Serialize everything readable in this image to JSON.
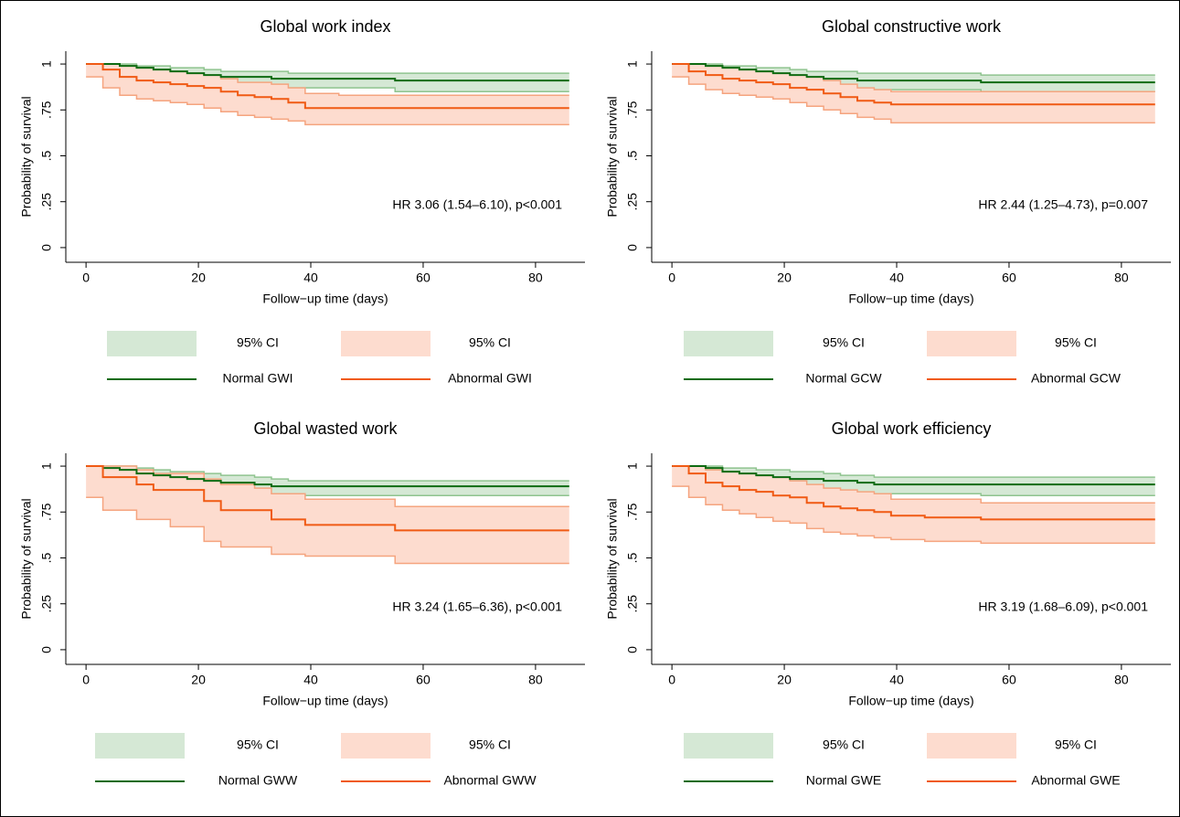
{
  "chart_data": [
    {
      "type": "step",
      "title": "Global work index",
      "x_label": "Follow−up time (days)",
      "y_label": "Probability of survival",
      "annotation": "HR 3.06 (1.54–6.10), p<0.001",
      "x": [
        0,
        3,
        6,
        9,
        12,
        15,
        18,
        21,
        24,
        27,
        30,
        33,
        36,
        39,
        45,
        55,
        70,
        86
      ],
      "xlim": [
        -3.6,
        88.8
      ],
      "ylim": [
        -0.08,
        1.07
      ],
      "xticks": [
        0,
        20,
        40,
        60,
        80
      ],
      "yticks": [
        0,
        {
          "value": 0.25,
          "label": ".25"
        },
        {
          "value": 0.5,
          "label": ".5"
        },
        {
          "value": 0.75,
          "label": ".75"
        },
        1
      ],
      "series": [
        {
          "name": "95% CI",
          "color": "#d5e8d5",
          "edge_color": "#8fc48f",
          "lower": [
            1,
            0.98,
            0.97,
            0.95,
            0.94,
            0.93,
            0.92,
            0.9,
            0.89,
            0.88,
            0.88,
            0.87,
            0.87,
            0.87,
            0.87,
            0.85,
            0.85,
            0.85
          ],
          "upper": [
            1,
            1,
            1,
            0.99,
            0.99,
            0.98,
            0.98,
            0.97,
            0.96,
            0.96,
            0.96,
            0.96,
            0.95,
            0.95,
            0.95,
            0.95,
            0.95,
            0.95
          ]
        },
        {
          "name": "95% CI",
          "color": "#fddccf",
          "edge_color": "#f5a47f",
          "lower": [
            0.93,
            0.87,
            0.83,
            0.81,
            0.8,
            0.79,
            0.78,
            0.76,
            0.74,
            0.72,
            0.71,
            0.7,
            0.69,
            0.67,
            0.67,
            0.67,
            0.67,
            0.67
          ],
          "upper": [
            1,
            1,
            0.99,
            0.98,
            0.97,
            0.96,
            0.95,
            0.94,
            0.92,
            0.9,
            0.9,
            0.89,
            0.87,
            0.84,
            0.83,
            0.83,
            0.83,
            0.83
          ]
        },
        {
          "name": "Normal GWI",
          "color": "#0e6b12",
          "values": [
            1,
            1,
            0.99,
            0.98,
            0.97,
            0.96,
            0.95,
            0.94,
            0.93,
            0.93,
            0.93,
            0.92,
            0.92,
            0.92,
            0.92,
            0.91,
            0.91,
            0.91
          ]
        },
        {
          "name": "Abnormal GWI",
          "color": "#f05a14",
          "values": [
            1,
            0.97,
            0.93,
            0.91,
            0.9,
            0.89,
            0.88,
            0.87,
            0.85,
            0.83,
            0.82,
            0.81,
            0.79,
            0.76,
            0.76,
            0.76,
            0.76,
            0.76
          ]
        }
      ]
    },
    {
      "type": "step",
      "title": "Global constructive work",
      "x_label": "Follow−up time (days)",
      "y_label": "Probability of survival",
      "annotation": "HR 2.44 (1.25–4.73), p=0.007",
      "x": [
        0,
        3,
        6,
        9,
        12,
        15,
        18,
        21,
        24,
        27,
        30,
        33,
        36,
        39,
        45,
        55,
        70,
        86
      ],
      "xlim": [
        -3.6,
        88.8
      ],
      "ylim": [
        -0.08,
        1.07
      ],
      "xticks": [
        0,
        20,
        40,
        60,
        80
      ],
      "yticks": [
        0,
        {
          "value": 0.25,
          "label": ".25"
        },
        {
          "value": 0.5,
          "label": ".5"
        },
        {
          "value": 0.75,
          "label": ".75"
        },
        1
      ],
      "series": [
        {
          "name": "95% CI",
          "color": "#d5e8d5",
          "edge_color": "#8fc48f",
          "lower": [
            1,
            0.98,
            0.96,
            0.95,
            0.94,
            0.93,
            0.92,
            0.9,
            0.89,
            0.88,
            0.87,
            0.86,
            0.86,
            0.86,
            0.86,
            0.85,
            0.85,
            0.85
          ],
          "upper": [
            1,
            1,
            1,
            0.99,
            0.99,
            0.98,
            0.98,
            0.97,
            0.96,
            0.96,
            0.96,
            0.95,
            0.95,
            0.95,
            0.95,
            0.94,
            0.94,
            0.94
          ]
        },
        {
          "name": "95% CI",
          "color": "#fddccf",
          "edge_color": "#f5a47f",
          "lower": [
            0.93,
            0.89,
            0.86,
            0.84,
            0.83,
            0.82,
            0.81,
            0.79,
            0.77,
            0.75,
            0.73,
            0.71,
            0.7,
            0.68,
            0.68,
            0.68,
            0.68,
            0.68
          ],
          "upper": [
            1,
            1,
            0.99,
            0.98,
            0.97,
            0.96,
            0.95,
            0.94,
            0.93,
            0.91,
            0.89,
            0.87,
            0.86,
            0.85,
            0.85,
            0.85,
            0.85,
            0.85
          ]
        },
        {
          "name": "Normal GCW",
          "color": "#0e6b12",
          "values": [
            1,
            1,
            0.99,
            0.98,
            0.97,
            0.96,
            0.95,
            0.94,
            0.93,
            0.92,
            0.92,
            0.91,
            0.91,
            0.91,
            0.91,
            0.9,
            0.9,
            0.9
          ]
        },
        {
          "name": "Abnormal GCW",
          "color": "#f05a14",
          "values": [
            1,
            0.96,
            0.94,
            0.92,
            0.91,
            0.9,
            0.89,
            0.87,
            0.86,
            0.84,
            0.82,
            0.8,
            0.79,
            0.78,
            0.78,
            0.78,
            0.78,
            0.78
          ]
        }
      ]
    },
    {
      "type": "step",
      "title": "Global wasted work",
      "x_label": "Follow−up time (days)",
      "y_label": "Probability of survival",
      "annotation": "HR 3.24 (1.65–6.36), p<0.001",
      "x": [
        0,
        3,
        6,
        9,
        12,
        15,
        18,
        21,
        24,
        27,
        30,
        33,
        36,
        39,
        45,
        55,
        70,
        86
      ],
      "xlim": [
        -3.6,
        88.8
      ],
      "ylim": [
        -0.08,
        1.07
      ],
      "xticks": [
        0,
        20,
        40,
        60,
        80
      ],
      "yticks": [
        0,
        {
          "value": 0.25,
          "label": ".25"
        },
        {
          "value": 0.5,
          "label": ".5"
        },
        {
          "value": 0.75,
          "label": ".75"
        },
        1
      ],
      "series": [
        {
          "name": "95% CI",
          "color": "#d5e8d5",
          "edge_color": "#8fc48f",
          "lower": [
            1,
            0.97,
            0.95,
            0.93,
            0.91,
            0.9,
            0.89,
            0.88,
            0.87,
            0.86,
            0.85,
            0.84,
            0.84,
            0.84,
            0.84,
            0.84,
            0.84,
            0.84
          ],
          "upper": [
            1,
            1,
            1,
            0.99,
            0.98,
            0.97,
            0.97,
            0.96,
            0.95,
            0.95,
            0.94,
            0.93,
            0.92,
            0.92,
            0.92,
            0.92,
            0.92,
            0.92
          ]
        },
        {
          "name": "95% CI",
          "color": "#fddccf",
          "edge_color": "#f5a47f",
          "lower": [
            0.83,
            0.76,
            0.76,
            0.71,
            0.71,
            0.67,
            0.67,
            0.59,
            0.56,
            0.56,
            0.56,
            0.52,
            0.52,
            0.51,
            0.51,
            0.47,
            0.47,
            0.47
          ],
          "upper": [
            1,
            1,
            1,
            0.98,
            0.96,
            0.96,
            0.96,
            0.93,
            0.9,
            0.9,
            0.88,
            0.85,
            0.85,
            0.82,
            0.82,
            0.78,
            0.78,
            0.78
          ]
        },
        {
          "name": "Normal GWW",
          "color": "#0e6b12",
          "values": [
            1,
            0.99,
            0.98,
            0.96,
            0.95,
            0.94,
            0.93,
            0.92,
            0.91,
            0.91,
            0.9,
            0.89,
            0.89,
            0.89,
            0.89,
            0.89,
            0.89,
            0.89
          ]
        },
        {
          "name": "Abnormal GWW",
          "color": "#f05a14",
          "values": [
            1,
            0.94,
            0.94,
            0.9,
            0.87,
            0.87,
            0.87,
            0.81,
            0.76,
            0.76,
            0.76,
            0.71,
            0.71,
            0.68,
            0.68,
            0.65,
            0.65,
            0.65
          ]
        }
      ]
    },
    {
      "type": "step",
      "title": "Global work efficiency",
      "x_label": "Follow−up time (days)",
      "y_label": "Probability of survival",
      "annotation": "HR 3.19 (1.68–6.09), p<0.001",
      "x": [
        0,
        3,
        6,
        9,
        12,
        15,
        18,
        21,
        24,
        27,
        30,
        33,
        36,
        39,
        45,
        55,
        70,
        86
      ],
      "xlim": [
        -3.6,
        88.8
      ],
      "ylim": [
        -0.08,
        1.07
      ],
      "xticks": [
        0,
        20,
        40,
        60,
        80
      ],
      "yticks": [
        0,
        {
          "value": 0.25,
          "label": ".25"
        },
        {
          "value": 0.5,
          "label": ".5"
        },
        {
          "value": 0.75,
          "label": ".75"
        },
        1
      ],
      "series": [
        {
          "name": "95% CI",
          "color": "#d5e8d5",
          "edge_color": "#8fc48f",
          "lower": [
            1,
            0.98,
            0.96,
            0.94,
            0.92,
            0.91,
            0.9,
            0.89,
            0.88,
            0.87,
            0.86,
            0.85,
            0.85,
            0.85,
            0.85,
            0.84,
            0.84,
            0.84
          ],
          "upper": [
            1,
            1,
            1,
            0.99,
            0.99,
            0.98,
            0.98,
            0.97,
            0.97,
            0.96,
            0.95,
            0.95,
            0.94,
            0.94,
            0.94,
            0.94,
            0.94,
            0.94
          ]
        },
        {
          "name": "95% CI",
          "color": "#fddccf",
          "edge_color": "#f5a47f",
          "lower": [
            0.89,
            0.83,
            0.79,
            0.76,
            0.74,
            0.72,
            0.7,
            0.69,
            0.66,
            0.64,
            0.63,
            0.62,
            0.61,
            0.6,
            0.59,
            0.58,
            0.58,
            0.58
          ],
          "upper": [
            1,
            1,
            0.98,
            0.97,
            0.96,
            0.95,
            0.94,
            0.92,
            0.9,
            0.88,
            0.87,
            0.86,
            0.85,
            0.82,
            0.82,
            0.8,
            0.8,
            0.8
          ]
        },
        {
          "name": "Normal GWE",
          "color": "#0e6b12",
          "values": [
            1,
            1,
            0.99,
            0.97,
            0.96,
            0.95,
            0.94,
            0.93,
            0.93,
            0.92,
            0.92,
            0.91,
            0.9,
            0.9,
            0.9,
            0.9,
            0.9,
            0.9
          ]
        },
        {
          "name": "Abnormal GWE",
          "color": "#f05a14",
          "values": [
            1,
            0.96,
            0.91,
            0.89,
            0.87,
            0.86,
            0.84,
            0.83,
            0.8,
            0.78,
            0.77,
            0.76,
            0.75,
            0.73,
            0.72,
            0.71,
            0.71,
            0.71
          ]
        }
      ]
    }
  ]
}
